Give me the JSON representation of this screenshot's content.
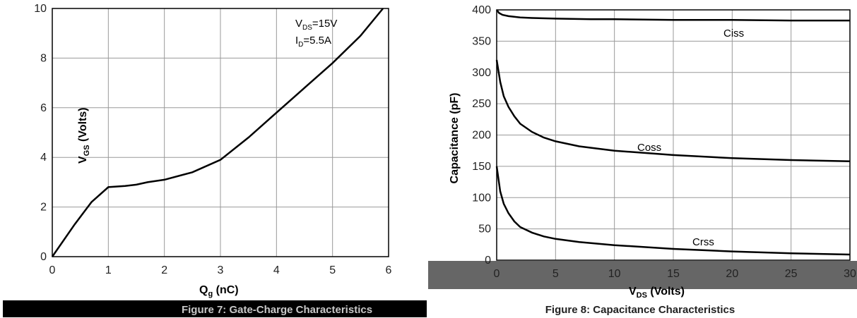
{
  "colors": {
    "curve": "#000000",
    "grid": "#999999",
    "caption_bg": "#000000",
    "caption_text": "#c8c8c8",
    "footer_bg": "#666666"
  },
  "chart_data": [
    {
      "type": "line",
      "title": "",
      "caption": "Figure 7: Gate-Charge Characteristics",
      "xlabel": "Q",
      "xlabel_sub": "g",
      "xlabel_unit": " (nC)",
      "ylabel": "V",
      "ylabel_sub": "GS",
      "ylabel_unit": " (Volts)",
      "xlim": [
        0,
        6
      ],
      "ylim": [
        0,
        10
      ],
      "x_ticks": [
        "0",
        "1",
        "2",
        "3",
        "4",
        "5",
        "6"
      ],
      "y_ticks": [
        "0",
        "2",
        "4",
        "6",
        "8",
        "10"
      ],
      "grid": true,
      "annotations": [
        "Vₓₛ=15V",
        "Iₙ=5.5A"
      ],
      "annotation_lines": [
        {
          "main": "V",
          "sub": "DS",
          "rest": "=15V"
        },
        {
          "main": "I",
          "sub": "D",
          "rest": "=5.5A"
        }
      ],
      "series": [
        {
          "x": [
            0,
            0.4,
            0.7,
            1.0,
            1.3,
            1.5,
            1.7,
            2.0,
            2.5,
            3.0,
            3.5,
            4.0,
            4.5,
            5.0,
            5.5,
            5.9
          ],
          "y": [
            0,
            1.3,
            2.2,
            2.8,
            2.85,
            2.9,
            3.0,
            3.1,
            3.4,
            3.9,
            4.8,
            5.8,
            6.8,
            7.8,
            8.9,
            10.0
          ]
        }
      ]
    },
    {
      "type": "line",
      "title": "",
      "caption": "Figure 8: Capacitance Characteristics",
      "xlabel": "V",
      "xlabel_sub": "DS",
      "xlabel_unit": " (Volts)",
      "ylabel": "Capacitance (pF)",
      "xlim": [
        0,
        30
      ],
      "ylim": [
        0,
        400
      ],
      "x_ticks": [
        "0",
        "5",
        "10",
        "15",
        "20",
        "25",
        "30"
      ],
      "y_ticks": [
        "0",
        "50",
        "100",
        "150",
        "200",
        "250",
        "300",
        "350",
        "400"
      ],
      "grid": true,
      "series": [
        {
          "name": "Ciss",
          "x": [
            0,
            0.2,
            0.5,
            1,
            2,
            3,
            5,
            8,
            10,
            15,
            20,
            25,
            30
          ],
          "y": [
            400,
            395,
            392,
            390,
            388,
            387,
            386,
            385,
            385,
            384,
            384,
            383,
            383
          ]
        },
        {
          "name": "Coss",
          "x": [
            0,
            0.3,
            0.6,
            1,
            1.5,
            2,
            3,
            4,
            5,
            7,
            10,
            15,
            20,
            25,
            30
          ],
          "y": [
            320,
            285,
            262,
            245,
            230,
            218,
            205,
            196,
            190,
            182,
            175,
            168,
            163,
            160,
            158
          ]
        },
        {
          "name": "Crss",
          "x": [
            0,
            0.3,
            0.6,
            1,
            1.5,
            2,
            3,
            4,
            5,
            7,
            10,
            15,
            20,
            25,
            30
          ],
          "y": [
            150,
            110,
            90,
            75,
            62,
            53,
            44,
            38,
            34,
            29,
            24,
            18,
            14,
            11,
            9
          ]
        }
      ],
      "series_labels": [
        "Ciss",
        "Coss",
        "Crss"
      ]
    }
  ]
}
